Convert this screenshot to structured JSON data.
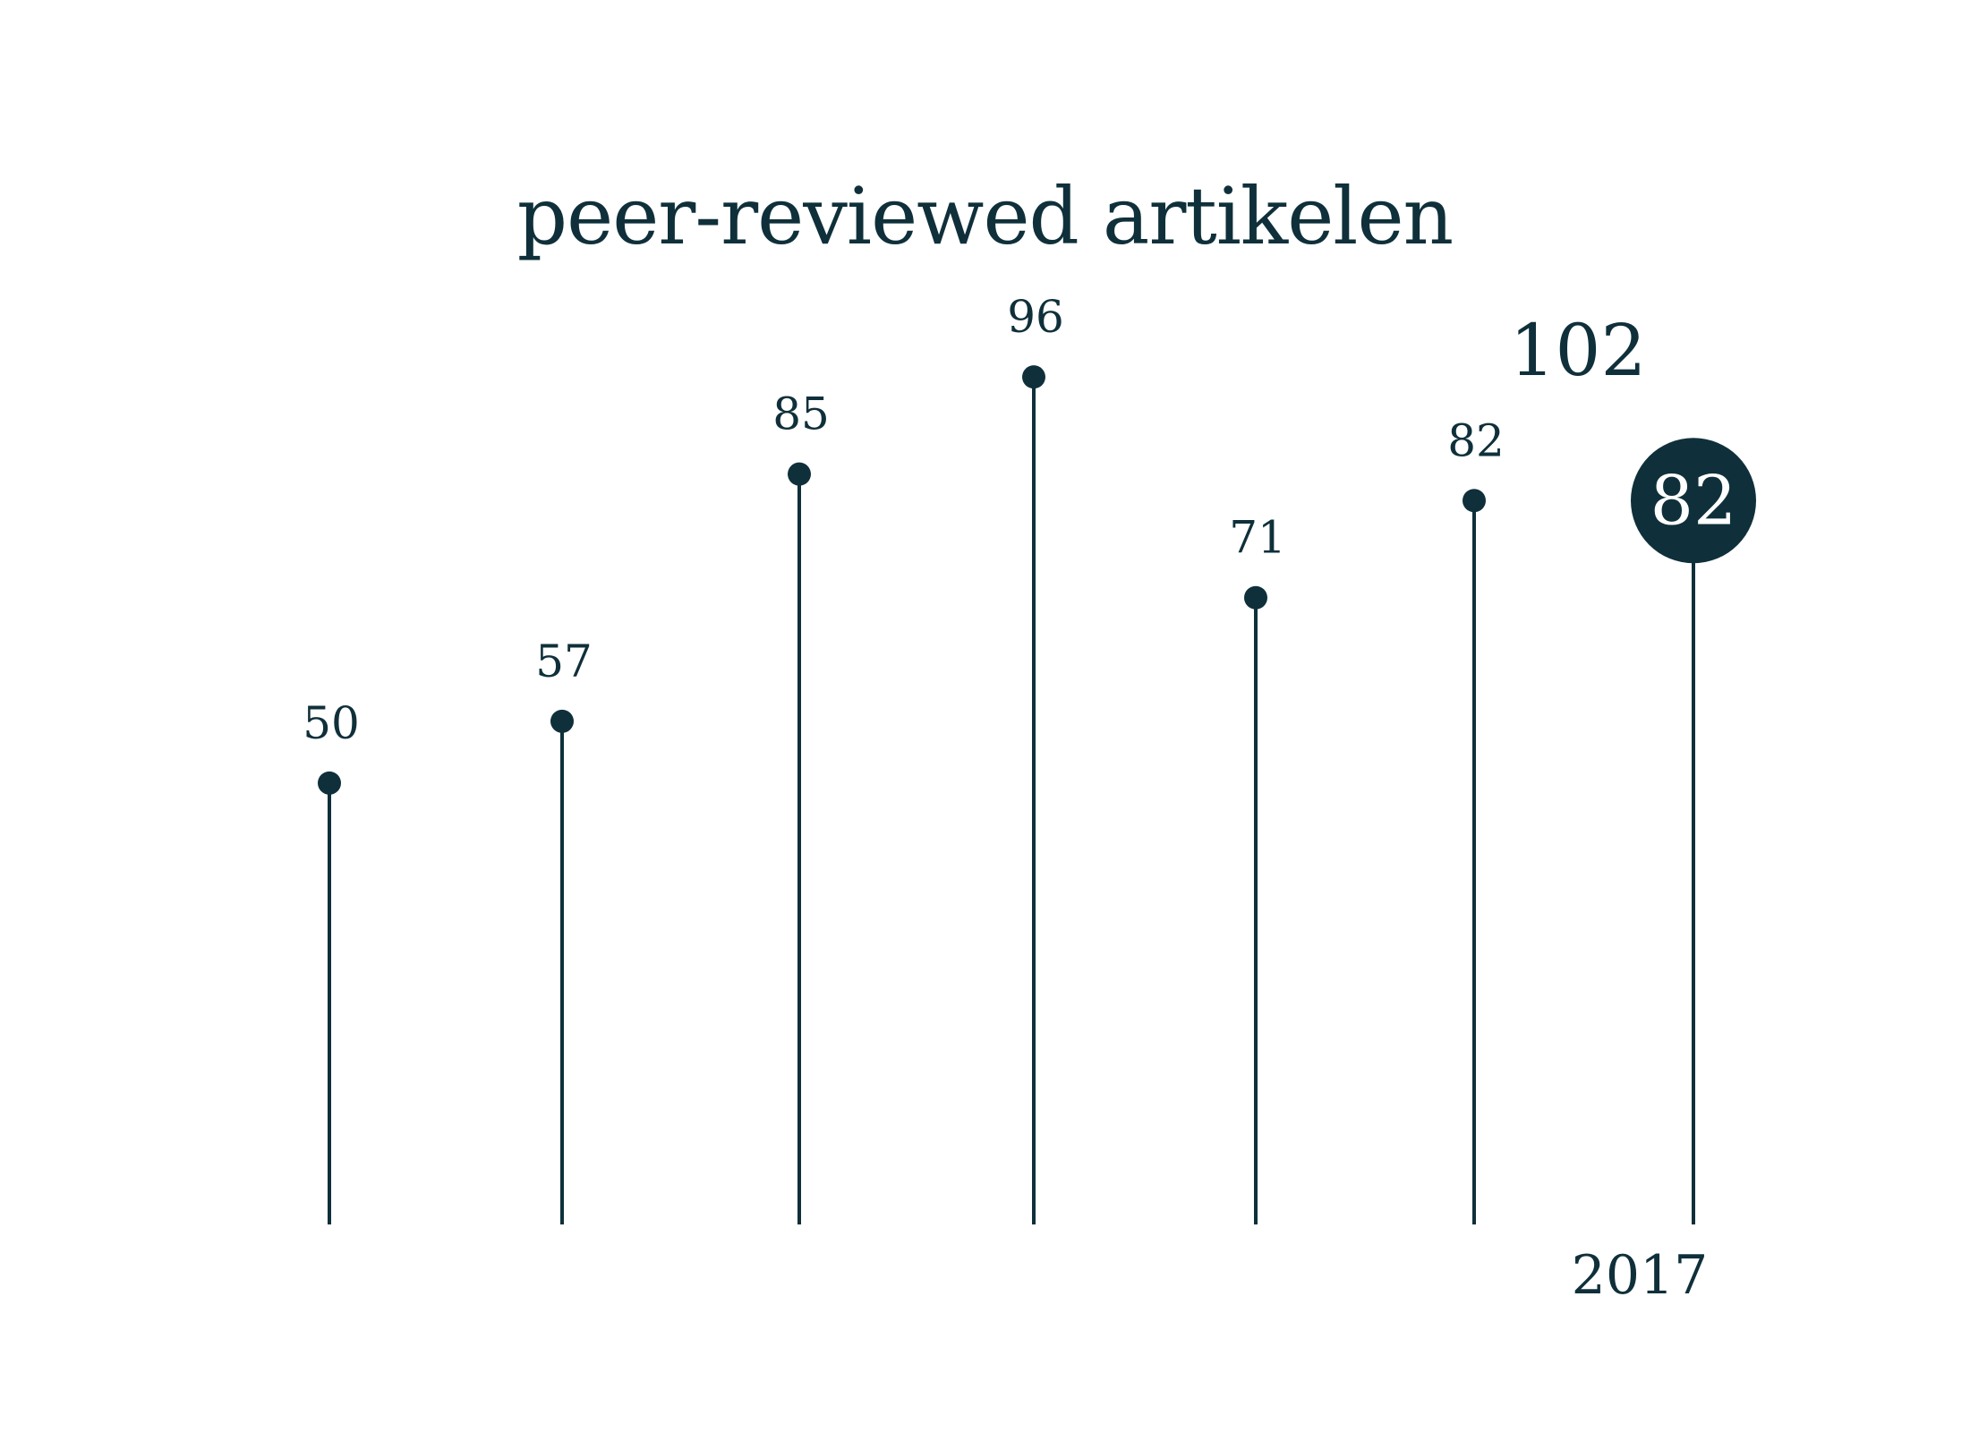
{
  "chart_data": {
    "type": "lollipop",
    "title": "peer-reviewed artikelen",
    "values": [
      50,
      57,
      85,
      96,
      71,
      82,
      82
    ],
    "x_labels": [
      "",
      "",
      "",
      "",
      "",
      "",
      "2017"
    ],
    "highlight_index": 6,
    "reference_label": "102",
    "reference_value": 102,
    "ylim": [
      0,
      102
    ],
    "grid": false,
    "colors": {
      "stem": "#0f303a",
      "dot": "#0f303a",
      "highlight_fill": "#0f303a",
      "highlight_text": "#ffffff"
    }
  }
}
